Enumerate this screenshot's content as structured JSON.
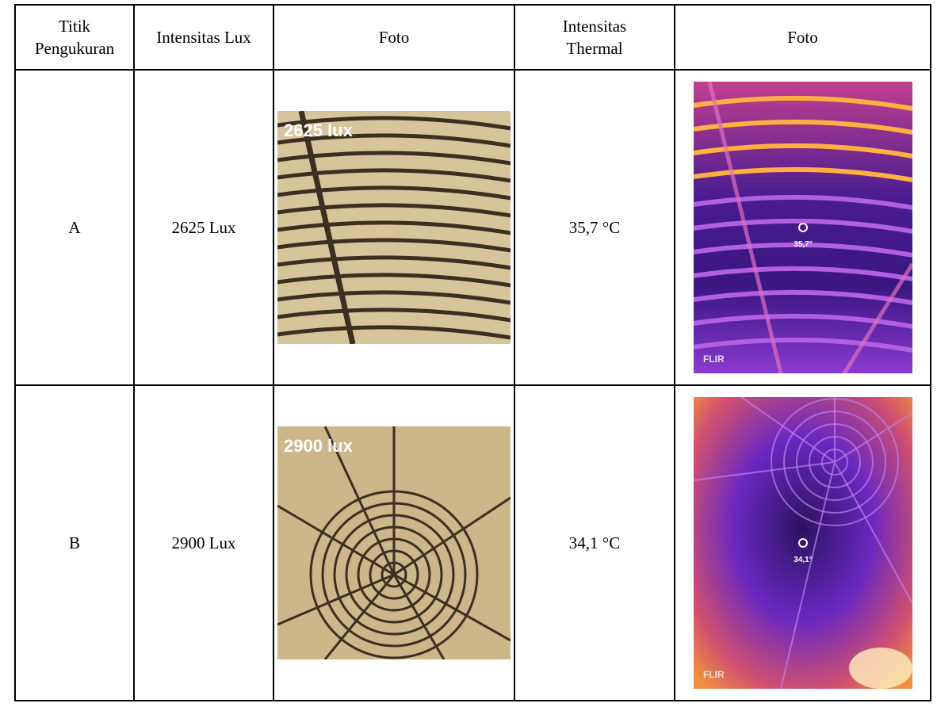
{
  "headers": [
    "Titik\nPengukuran",
    "Intensitas Lux",
    "Foto",
    "Intensitas\nThermal",
    "Foto"
  ],
  "header_lines": {
    "col1": [
      "Titik",
      "Pengukuran"
    ],
    "col2": "Intensitas Lux",
    "col3": "Foto",
    "col4": [
      "Intensitas",
      "Thermal"
    ],
    "col5": "Foto"
  },
  "rows": [
    {
      "point": "A",
      "lux": "2625 Lux",
      "photo_label": "2625 lux",
      "thermal": "35,7 °C",
      "thermal_label": "35,7°",
      "brand": "FLIR"
    },
    {
      "point": "B",
      "lux": "2900 Lux",
      "photo_label": "2900 lux",
      "thermal": "34,1 °C",
      "thermal_label": "34,1°",
      "brand": "FLIR"
    }
  ],
  "colors": {
    "photo_bg": "#d8c49a",
    "grid_line": "#3a2f20",
    "thermal_dark": "#2a1360",
    "thermal_mid": "#7a2ed0",
    "thermal_hot": "#ffb040"
  }
}
